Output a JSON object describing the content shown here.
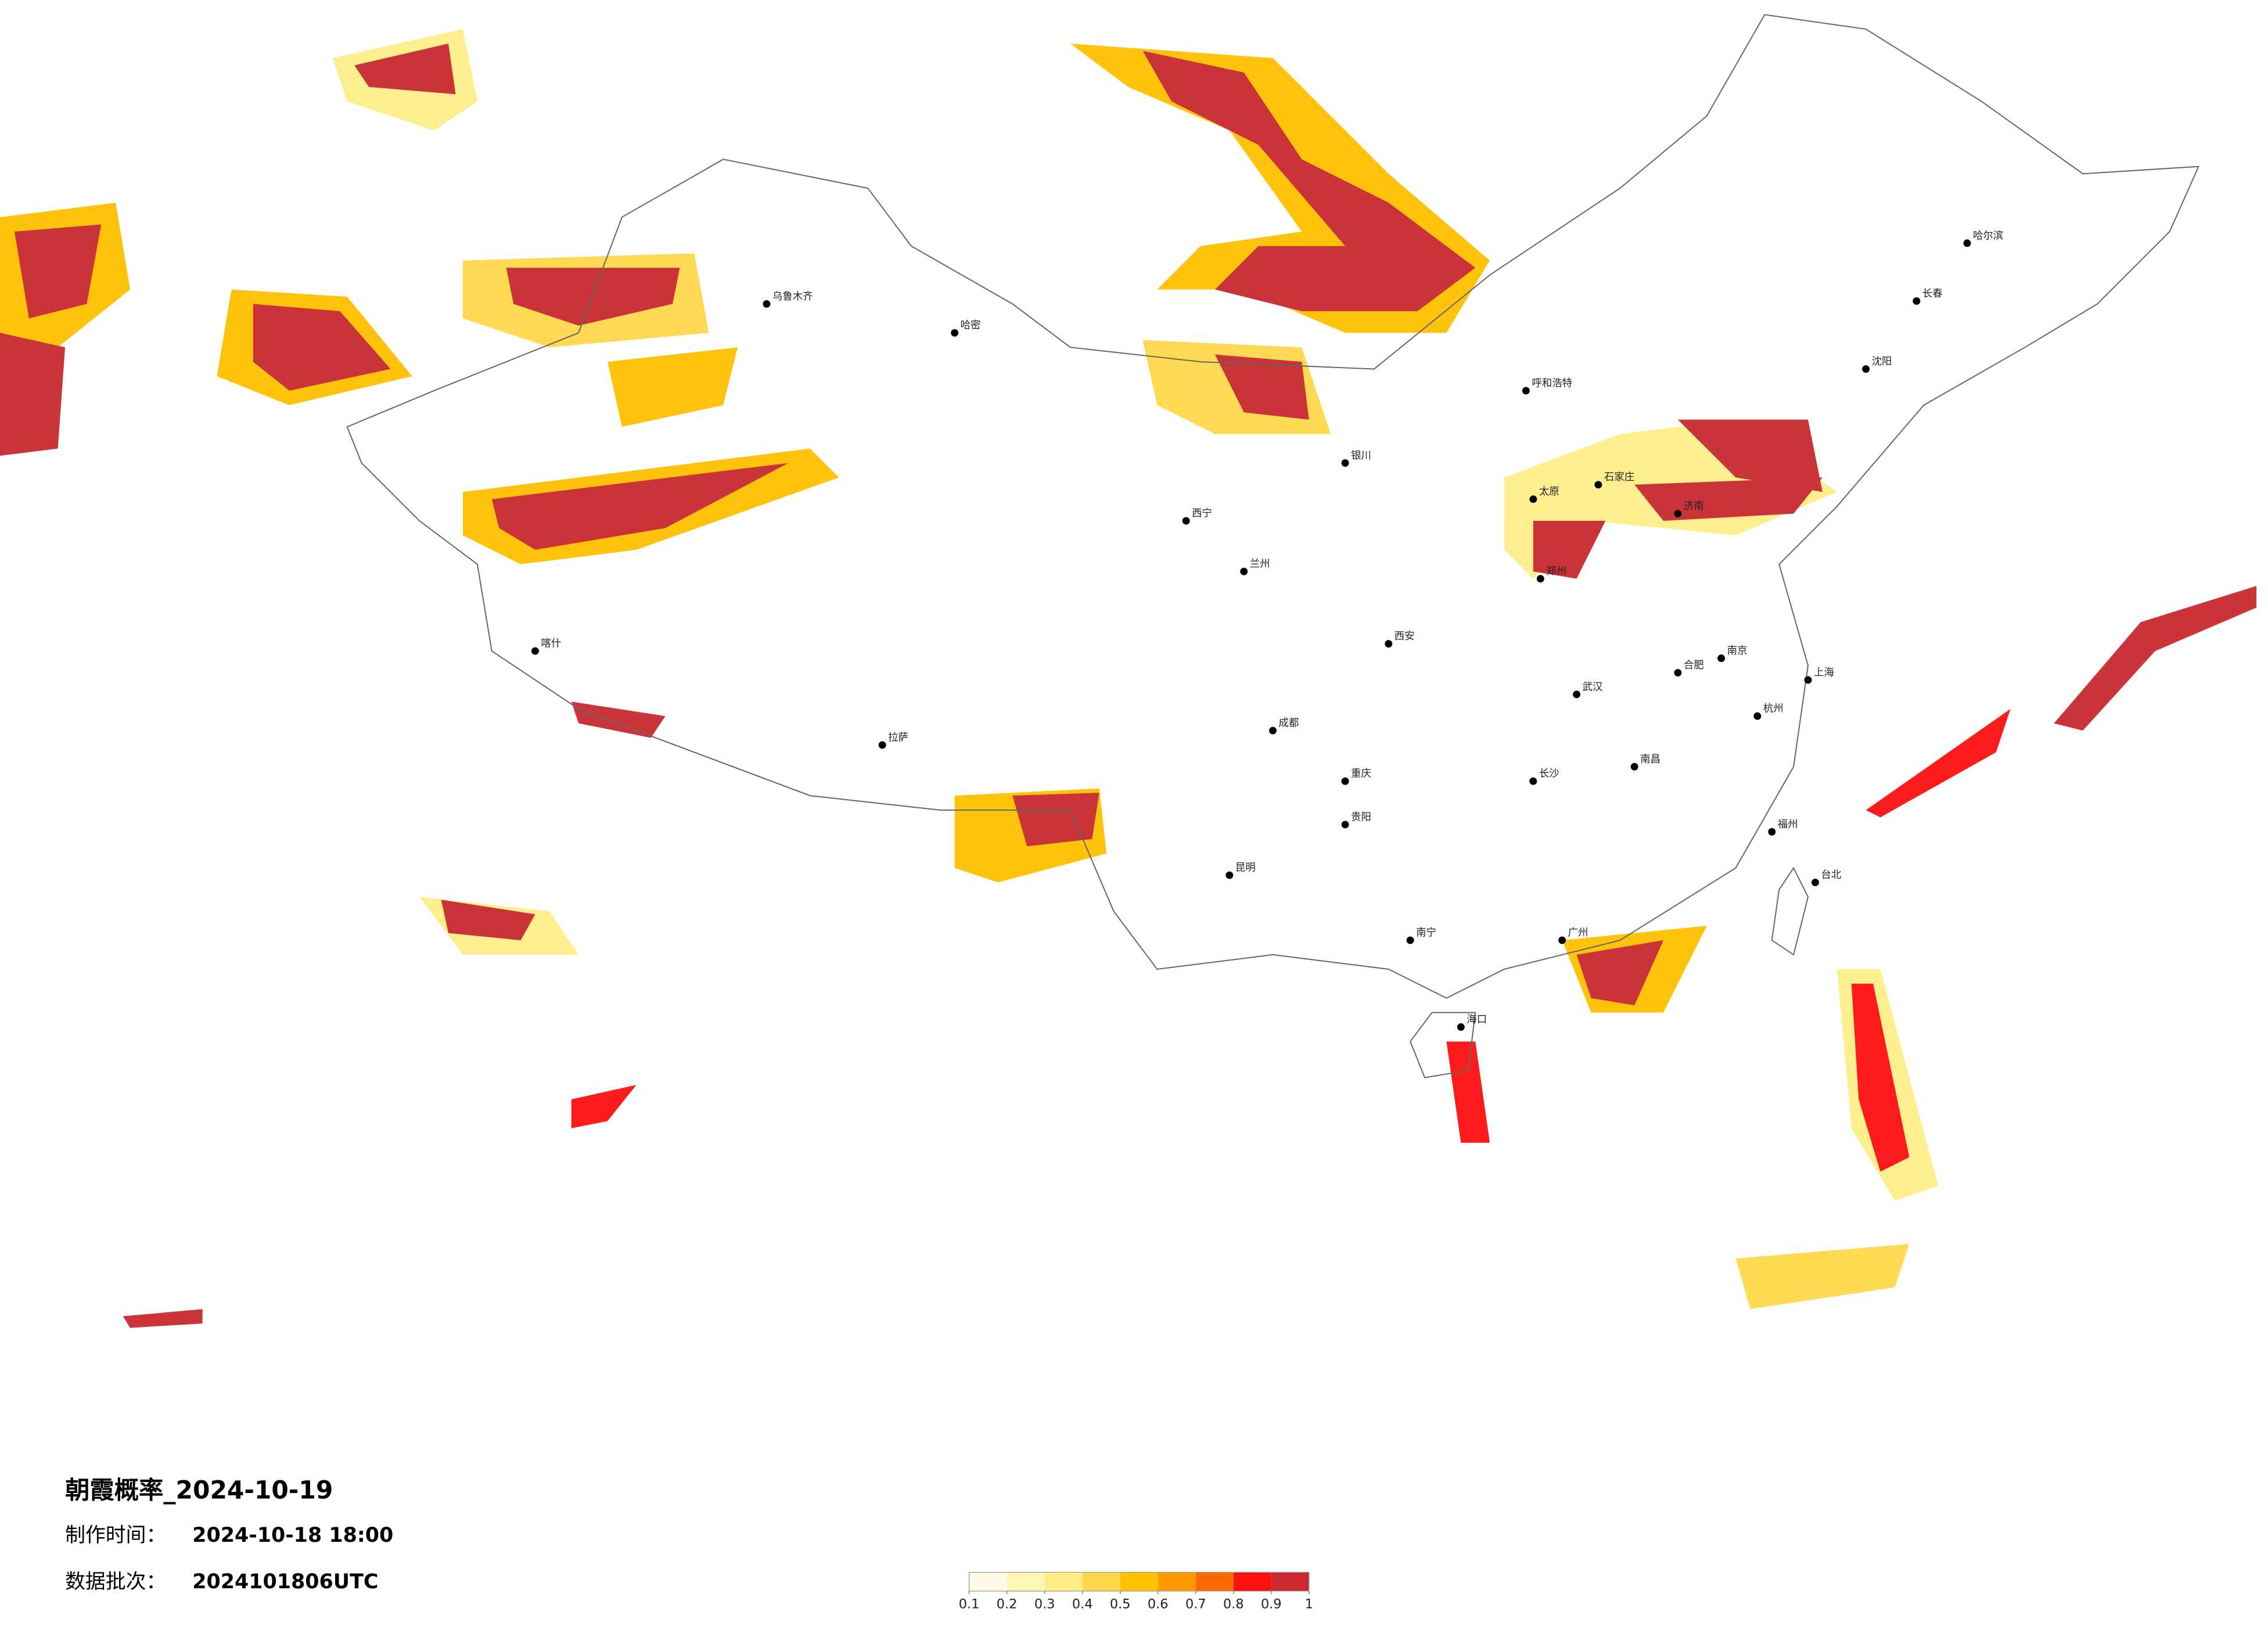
{
  "title": "朝霞概率_2024-10-19",
  "made_time": {
    "label": "制作时间：",
    "value": "2024-10-18 18:00"
  },
  "batch": {
    "label": "数据批次：",
    "value": "2024101806UTC"
  },
  "legend": {
    "colors": [
      "#fffbe6",
      "#fff6b5",
      "#ffee88",
      "#ffd84a",
      "#ffc000",
      "#ff9a00",
      "#ff6a00",
      "#ff1010",
      "#c82a2e"
    ],
    "ticks": [
      0.1,
      0.2,
      0.3,
      0.4,
      0.5,
      0.6,
      0.7,
      0.8,
      0.9,
      1
    ]
  },
  "cities": [
    "哈尔滨",
    "长春",
    "沈阳",
    "呼和浩特",
    "乌鲁木齐",
    "拉萨",
    "西宁",
    "兰州",
    "银川",
    "西安",
    "成都",
    "重庆",
    "昆明",
    "贵阳",
    "南宁",
    "广州",
    "长沙",
    "武汉",
    "南昌",
    "郑州",
    "济南",
    "石家庄",
    "太原",
    "合肥",
    "南京",
    "上海",
    "杭州",
    "福州",
    "台北",
    "海口",
    "喀什",
    "哈密"
  ]
}
